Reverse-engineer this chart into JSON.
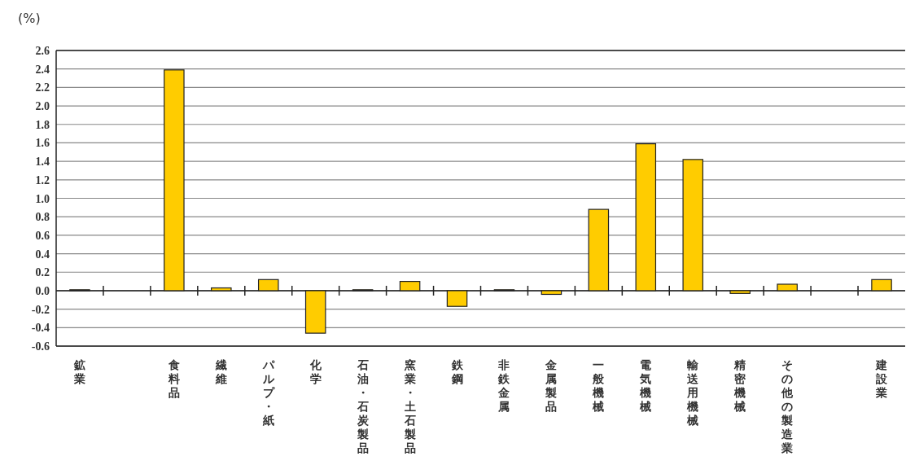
{
  "chart_data": {
    "type": "bar",
    "ylabel": "(%)",
    "categories": [
      "鉱業",
      null,
      "食料品",
      "繊維",
      "パルプ・紙",
      "化学",
      "石油・石炭製品",
      "窯業・土石製品",
      "鉄鋼",
      "非鉄金属",
      "金属製品",
      "一般機械",
      "電気機械",
      "輸送用機械",
      "精密機械",
      "その他の製造業",
      null,
      "建設業"
    ],
    "values": [
      0.01,
      null,
      2.39,
      0.03,
      0.12,
      -0.46,
      0.01,
      0.1,
      -0.17,
      0.01,
      -0.04,
      0.88,
      1.59,
      1.42,
      -0.03,
      0.07,
      null,
      0.12
    ],
    "color": "#ffcc00",
    "ylim": [
      -0.6,
      2.6
    ],
    "yticks": [
      {
        "value": -0.6,
        "label": "-0.6"
      },
      {
        "value": -0.4,
        "label": "-0.4"
      },
      {
        "value": -0.2,
        "label": "-0.2"
      },
      {
        "value": 0,
        "label": "0.0"
      },
      {
        "value": 0.2,
        "label": "0.2"
      },
      {
        "value": 0.4,
        "label": "0.4"
      },
      {
        "value": 0.6,
        "label": "0.6"
      },
      {
        "value": 0.8,
        "label": "0.8"
      },
      {
        "value": 1.0,
        "label": "1.0"
      },
      {
        "value": 1.2,
        "label": "1.2"
      },
      {
        "value": 1.4,
        "label": "1.4"
      },
      {
        "value": 1.6,
        "label": "1.6"
      },
      {
        "value": 1.8,
        "label": "1.8"
      },
      {
        "value": 2.0,
        "label": "2.0"
      },
      {
        "value": 2.2,
        "label": "2.2"
      },
      {
        "value": 2.4,
        "label": "2.4"
      },
      {
        "value": 2.6,
        "label": "2.6"
      }
    ],
    "grid": "y"
  }
}
